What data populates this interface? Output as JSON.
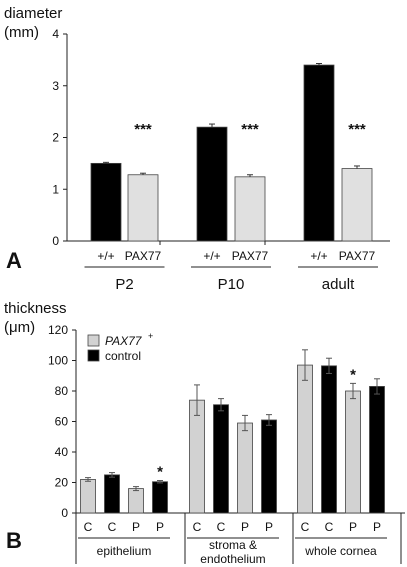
{
  "chart_data": [
    {
      "type": "bar",
      "panel_label": "A",
      "ylabel": "diameter",
      "yunit": "(mm)",
      "ylim": [
        0,
        4
      ],
      "yticks": [
        "0",
        "1",
        "2",
        "3",
        "4"
      ],
      "groups": [
        "P2",
        "P10",
        "adult"
      ],
      "bar_labels": [
        "+/+",
        "PAX77"
      ],
      "series": [
        {
          "name": "+/+",
          "color": "#000000",
          "values": [
            1.5,
            2.2,
            3.4
          ],
          "errors": [
            0.02,
            0.06,
            0.03
          ]
        },
        {
          "name": "PAX77",
          "color": "#e0e0e0",
          "values": [
            1.28,
            1.24,
            1.4
          ],
          "errors": [
            0.03,
            0.04,
            0.05
          ]
        }
      ],
      "significance": [
        "***",
        "***",
        "***"
      ]
    },
    {
      "type": "bar",
      "panel_label": "B",
      "ylabel": "thickness",
      "yunit": "(μm)",
      "ylim": [
        0,
        120
      ],
      "yticks": [
        "0",
        "20",
        "40",
        "60",
        "80",
        "100",
        "120"
      ],
      "groups": [
        "epithelium",
        "stroma &\nendothelium",
        "whole cornea"
      ],
      "bar_labels": [
        "C",
        "C",
        "P",
        "P"
      ],
      "bar_types": [
        "gray",
        "black",
        "gray",
        "black"
      ],
      "values": [
        [
          22,
          25,
          16,
          20.5
        ],
        [
          74,
          71,
          59,
          61
        ],
        [
          97,
          96.5,
          80,
          83
        ]
      ],
      "errors": [
        [
          1.2,
          1.5,
          1.3,
          0.8
        ],
        [
          10,
          4,
          5,
          3.5
        ],
        [
          10,
          5,
          5,
          5
        ]
      ],
      "legend": [
        {
          "label": "PAX77",
          "superscript": "+",
          "color": "#d2d2d2"
        },
        {
          "label": "control",
          "color": "#000000"
        }
      ],
      "significance_mark": "*",
      "significance_positions": [
        [
          0,
          3
        ],
        [
          2,
          2
        ]
      ]
    }
  ]
}
